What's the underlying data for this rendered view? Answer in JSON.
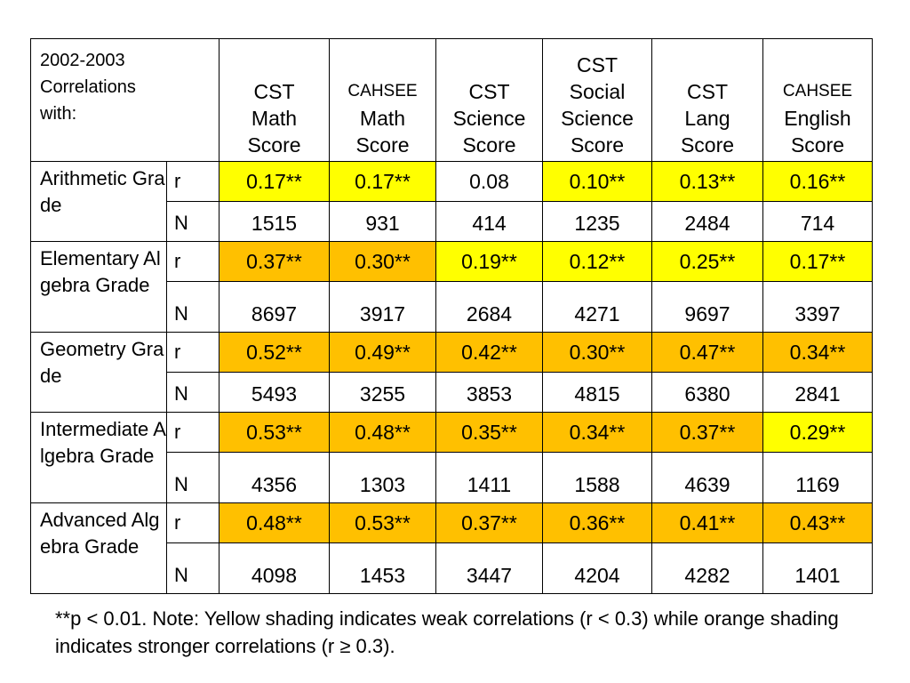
{
  "table": {
    "corner_label": [
      "2002-2003",
      "Correlations",
      "with:"
    ],
    "columns": [
      {
        "line1": "CST",
        "line1_small": false,
        "line2": "Math",
        "line3": "Score"
      },
      {
        "line1": "CAHSEE",
        "line1_small": true,
        "line2": "Math",
        "line3": "Score"
      },
      {
        "line1": "CST",
        "line1_small": false,
        "line2": "Science",
        "line3": "Score"
      },
      {
        "line1": "CST",
        "line1_small": false,
        "line2": "Social",
        "line3": "Science",
        "line4": "Score"
      },
      {
        "line1": "CST",
        "line1_small": false,
        "line2": "Lang",
        "line3": "Score"
      },
      {
        "line1": "CAHSEE",
        "line1_small": true,
        "line2": "English",
        "line3": "Score"
      }
    ],
    "rows": [
      {
        "label": "Arithmetic Grade",
        "r_label": "r",
        "n_label": "N",
        "r": [
          "0.17**",
          "0.17**",
          "0.08",
          "0.10**",
          "0.13**",
          "0.16**"
        ],
        "r_shading": [
          "weak",
          "weak",
          "plain",
          "weak",
          "weak",
          "weak"
        ],
        "n": [
          "1515",
          "931",
          "414",
          "1235",
          "2484",
          "714"
        ]
      },
      {
        "label": "Elementary Algebra Grade",
        "r_label": "r",
        "n_label": "N",
        "r": [
          "0.37**",
          "0.30**",
          "0.19**",
          "0.12**",
          "0.25**",
          "0.17**"
        ],
        "r_shading": [
          "strong",
          "strong",
          "weak",
          "weak",
          "weak",
          "weak"
        ],
        "n": [
          "8697",
          "3917",
          "2684",
          "4271",
          "9697",
          "3397"
        ]
      },
      {
        "label": "Geometry Grade",
        "r_label": "r",
        "n_label": "N",
        "r": [
          "0.52**",
          "0.49**",
          "0.42**",
          "0.30**",
          "0.47**",
          "0.34**"
        ],
        "r_shading": [
          "strong",
          "strong",
          "strong",
          "strong",
          "strong",
          "strong"
        ],
        "n": [
          "5493",
          "3255",
          "3853",
          "4815",
          "6380",
          "2841"
        ]
      },
      {
        "label": "Intermediate Algebra Grade",
        "r_label": "r",
        "n_label": "N",
        "r": [
          "0.53**",
          "0.48**",
          "0.35**",
          "0.34**",
          "0.37**",
          "0.29**"
        ],
        "r_shading": [
          "strong",
          "strong",
          "strong",
          "strong",
          "strong",
          "weak"
        ],
        "n": [
          "4356",
          "1303",
          "1411",
          "1588",
          "4639",
          "1169"
        ]
      },
      {
        "label": "Advanced Algebra Grade",
        "r_label": "r",
        "n_label": "N",
        "r": [
          "0.48**",
          "0.53**",
          "0.37**",
          "0.36**",
          "0.41**",
          "0.43**"
        ],
        "r_shading": [
          "strong",
          "strong",
          "strong",
          "strong",
          "strong",
          "strong"
        ],
        "n": [
          "4098",
          "1453",
          "3447",
          "4204",
          "4282",
          "1401"
        ]
      }
    ]
  },
  "note": "**p < 0.01.  Note: Yellow shading indicates weak correlations (r < 0.3) while orange shading indicates stronger correlations (r ≥ 0.3).",
  "colors": {
    "weak": "#ffff00",
    "strong": "#ffc000",
    "border": "#000000"
  }
}
